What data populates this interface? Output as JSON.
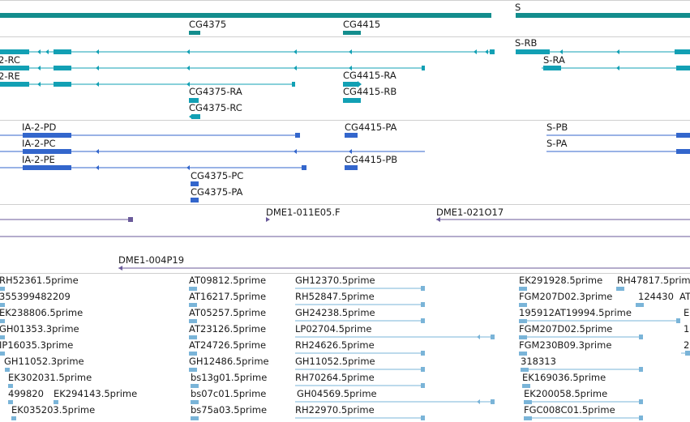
{
  "colors": {
    "gene": "#138d8d",
    "rna": "#12a0b4",
    "protein": "#3366cc",
    "clone": "#6a5a9a",
    "est": "#7ab4d8",
    "separator": "#cfcfcf"
  },
  "tracks": {
    "genes": {
      "labels": [
        "S",
        "CG4375",
        "CG4415"
      ]
    },
    "transcripts": {
      "labels": [
        "S-RB",
        "2-RC",
        "S-RA",
        "2-RE",
        "CG4415-RA",
        "CG4375-RA",
        "CG4415-RB",
        "CG4375-RC"
      ]
    },
    "proteins": {
      "labels": [
        "IA-2-PD",
        "CG4415-PA",
        "S-PB",
        "IA-2-PC",
        "S-PA",
        "IA-2-PE",
        "CG4415-PB",
        "CG4375-PC",
        "CG4375-PA"
      ]
    },
    "clones": {
      "labels": [
        "DME1-011E05.F",
        "DME1-021O17",
        "DME1-004P19"
      ]
    },
    "ests": {
      "labels": [
        "RH52361.5prime",
        "355399482209",
        "EK238806.5prime",
        "GH01353.3prime",
        "IP16035.3prime",
        "GH11052.3prime",
        "EK302031.5prime",
        "499820",
        "EK294143.5prime",
        "EK035203.5prime",
        "AT09812.5prime",
        "AT16217.5prime",
        "AT05257.5prime",
        "AT23126.5prime",
        "AT24726.5prime",
        "GH12486.5prime",
        "bs13g01.5prime",
        "bs07c01.5prime",
        "bs75a03.5prime",
        "GH12370.5prime",
        "RH52847.5prime",
        "GH24238.5prime",
        "LP02704.5prime",
        "RH24626.5prime",
        "GH11052.5prime",
        "RH70264.5prime",
        "GH04569.5prime",
        "RH22970.5prime",
        "EK291928.5prime",
        "RH47817.5prime",
        "FGM207D02.3prime",
        "124430",
        "AT",
        "195912AT19994.5prime",
        "E",
        "FGM207D02.5prime",
        "1",
        "FGM230B09.3prime",
        "2",
        "318313",
        "EK169036.5prime",
        "EK200058.5prime",
        "FGC008C01.5prime"
      ]
    }
  }
}
